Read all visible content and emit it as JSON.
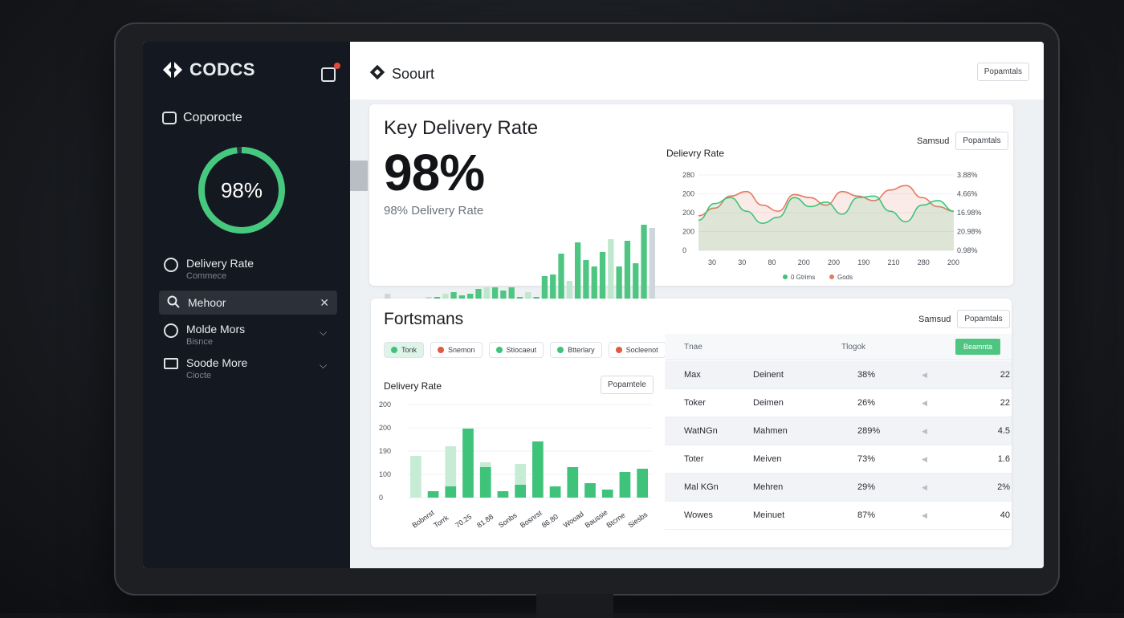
{
  "sidebar": {
    "brand": "CODCS",
    "company": "Coporocte",
    "ring_value": "98%",
    "ring_fraction": 0.98,
    "nav": [
      {
        "label": "Delivery Rate",
        "sub": "Commece"
      },
      {
        "label": "Molde Mors",
        "sub": "Bisnce"
      },
      {
        "label": "Soode More",
        "sub": "Ciocte"
      }
    ],
    "search": {
      "value": "Mehoor"
    }
  },
  "topbar": {
    "title": "Soourt",
    "button": "Popamtals"
  },
  "kpi_card": {
    "title": "Key Delivery Rate",
    "value": "98%",
    "subtitle": "98% Delivery Rate",
    "right_label": "Samsud",
    "right_button": "Popamtals"
  },
  "performance": {
    "title": "Fortsmans",
    "right_label": "Samsud",
    "right_button": "Popamtals",
    "chips": [
      {
        "label": "Tonk",
        "color": "#3fc37a"
      },
      {
        "label": "Snemon",
        "color": "#e05a3f"
      },
      {
        "label": "Stiocaeut",
        "color": "#3fc37a"
      },
      {
        "label": "Btterlary",
        "color": "#3fc37a"
      },
      {
        "label": "Socleenot",
        "color": "#e05a3f"
      }
    ],
    "bar_chart_title": "Delivery Rate",
    "bar_chart_button": "Popamtele"
  },
  "table": {
    "headers": [
      "Tnae",
      "Tlogok"
    ],
    "header_button": "Beamnta",
    "rows": [
      {
        "name": "Max",
        "type": "Deinent",
        "pct": "38%",
        "val": "22"
      },
      {
        "name": "Toker",
        "type": "Deimen",
        "pct": "26%",
        "val": "22"
      },
      {
        "name": "WatNGn",
        "type": "Mahmen",
        "pct": "289%",
        "val": "4.5"
      },
      {
        "name": "Toter",
        "type": "Meiven",
        "pct": "73%",
        "val": "1.6"
      },
      {
        "name": "Mal KGn",
        "type": "Mehren",
        "pct": "29%",
        "val": "2%"
      },
      {
        "name": "Wowes",
        "type": "Meinuet",
        "pct": "87%",
        "val": "40"
      }
    ]
  },
  "chart_data": [
    {
      "type": "bar",
      "title": "",
      "values": [
        14,
        8,
        6,
        6,
        8,
        10,
        10,
        14,
        16,
        12,
        14,
        20,
        22,
        22,
        18,
        22,
        10,
        16,
        10,
        36,
        38,
        64,
        30,
        78,
        56,
        48,
        66,
        82,
        48,
        80,
        52,
        100,
        96
      ],
      "highlight_from": 6,
      "colors": {
        "faded": "#cfd6db",
        "green": "#4ec682",
        "light": "#bfe7cd"
      }
    },
    {
      "type": "area",
      "title": "Delievry Rate",
      "x_labels": [
        "30",
        "30",
        "80",
        "200",
        "200",
        "190",
        "210",
        "280",
        "200"
      ],
      "y_labels_left": [
        "280",
        "200",
        "200",
        "200",
        "0"
      ],
      "y_labels_right": [
        "3.88%",
        "4.66%",
        "16.98%",
        "20.98%",
        "0.98%"
      ],
      "series": [
        {
          "name": "0 Gtrims",
          "color": "#3fc37a",
          "values": [
            40,
            62,
            70,
            52,
            36,
            44,
            70,
            58,
            64,
            48,
            70,
            72,
            52,
            38,
            60,
            66,
            52
          ]
        },
        {
          "name": "Gods",
          "color": "#e57a62",
          "values": [
            46,
            56,
            72,
            78,
            60,
            52,
            74,
            70,
            60,
            78,
            72,
            66,
            80,
            86,
            70,
            58,
            52
          ]
        }
      ]
    },
    {
      "type": "bar",
      "title": "Delivery Rate",
      "y_labels": [
        "200",
        "200",
        "190",
        "100",
        "0"
      ],
      "x_labels": [
        "Bobnrst",
        "Torrk",
        "70.25",
        "81.88",
        "Sonbs",
        "Bosnrst",
        "86.80",
        "Wooad",
        "Baussie",
        "Btcrne",
        "Siesbs"
      ],
      "series": [
        {
          "name": "light",
          "values": [
            52,
            0,
            64,
            0,
            44,
            0,
            42,
            0,
            0,
            0,
            0,
            0,
            0,
            0
          ]
        },
        {
          "name": "green",
          "values": [
            0,
            8,
            14,
            86,
            38,
            8,
            16,
            70,
            14,
            38,
            18,
            10,
            32,
            36
          ]
        }
      ]
    }
  ]
}
